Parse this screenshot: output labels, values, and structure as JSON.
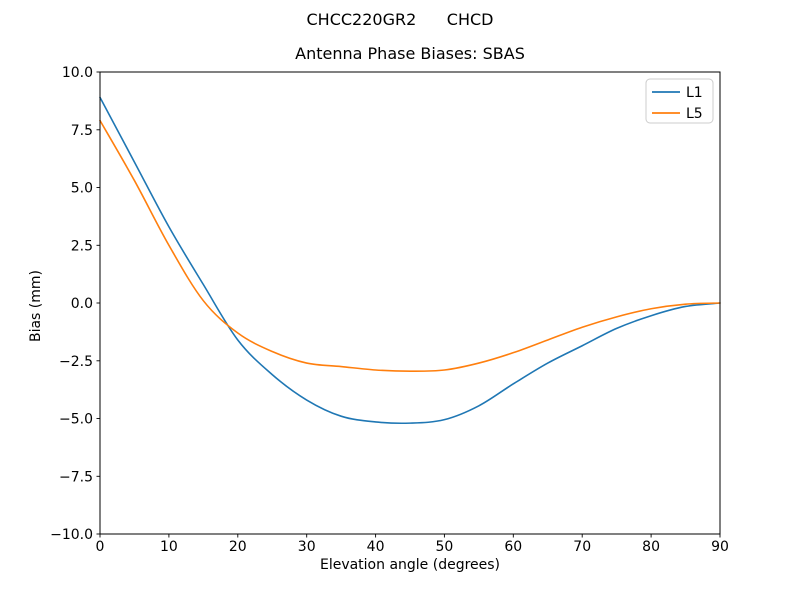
{
  "figure": {
    "suptitle": "CHCC220GR2      CHCD",
    "background_color": "#ffffff",
    "text_color": "#000000",
    "spine_color": "#000000"
  },
  "chart_data": {
    "type": "line",
    "title": "Antenna Phase Biases: SBAS",
    "xlabel": "Elevation angle (degrees)",
    "ylabel": "Bias (mm)",
    "xlim": [
      0,
      90
    ],
    "ylim": [
      -10.0,
      10.0
    ],
    "grid": false,
    "xticks": [
      0,
      10,
      20,
      30,
      40,
      50,
      60,
      70,
      80,
      90
    ],
    "xtick_labels": [
      "0",
      "10",
      "20",
      "30",
      "40",
      "50",
      "60",
      "70",
      "80",
      "90"
    ],
    "ytick_values": [
      10.0,
      7.5,
      5.0,
      2.5,
      0.0,
      -2.5,
      -5.0,
      -7.5,
      -10.0
    ],
    "ytick_labels": [
      "10.0",
      "7.5",
      "5.0",
      "2.5",
      "0.0",
      "−2.5",
      "−5.0",
      "−7.5",
      "−10.0"
    ],
    "x": [
      0,
      5,
      10,
      15,
      20,
      25,
      30,
      35,
      40,
      45,
      50,
      55,
      60,
      65,
      70,
      75,
      80,
      85,
      90
    ],
    "series": [
      {
        "name": "L1",
        "color": "#1f77b4",
        "values": [
          8.9,
          6.1,
          3.3,
          0.8,
          -1.6,
          -3.1,
          -4.2,
          -4.9,
          -5.15,
          -5.2,
          -5.05,
          -4.45,
          -3.5,
          -2.6,
          -1.85,
          -1.1,
          -0.55,
          -0.15,
          0.0
        ]
      },
      {
        "name": "L5",
        "color": "#ff7f0e",
        "values": [
          7.9,
          5.3,
          2.5,
          0.1,
          -1.3,
          -2.1,
          -2.6,
          -2.75,
          -2.9,
          -2.95,
          -2.9,
          -2.6,
          -2.15,
          -1.6,
          -1.05,
          -0.6,
          -0.25,
          -0.05,
          0.0
        ]
      }
    ],
    "legend": {
      "position": "upper right",
      "entries": [
        "L1",
        "L5"
      ]
    }
  }
}
